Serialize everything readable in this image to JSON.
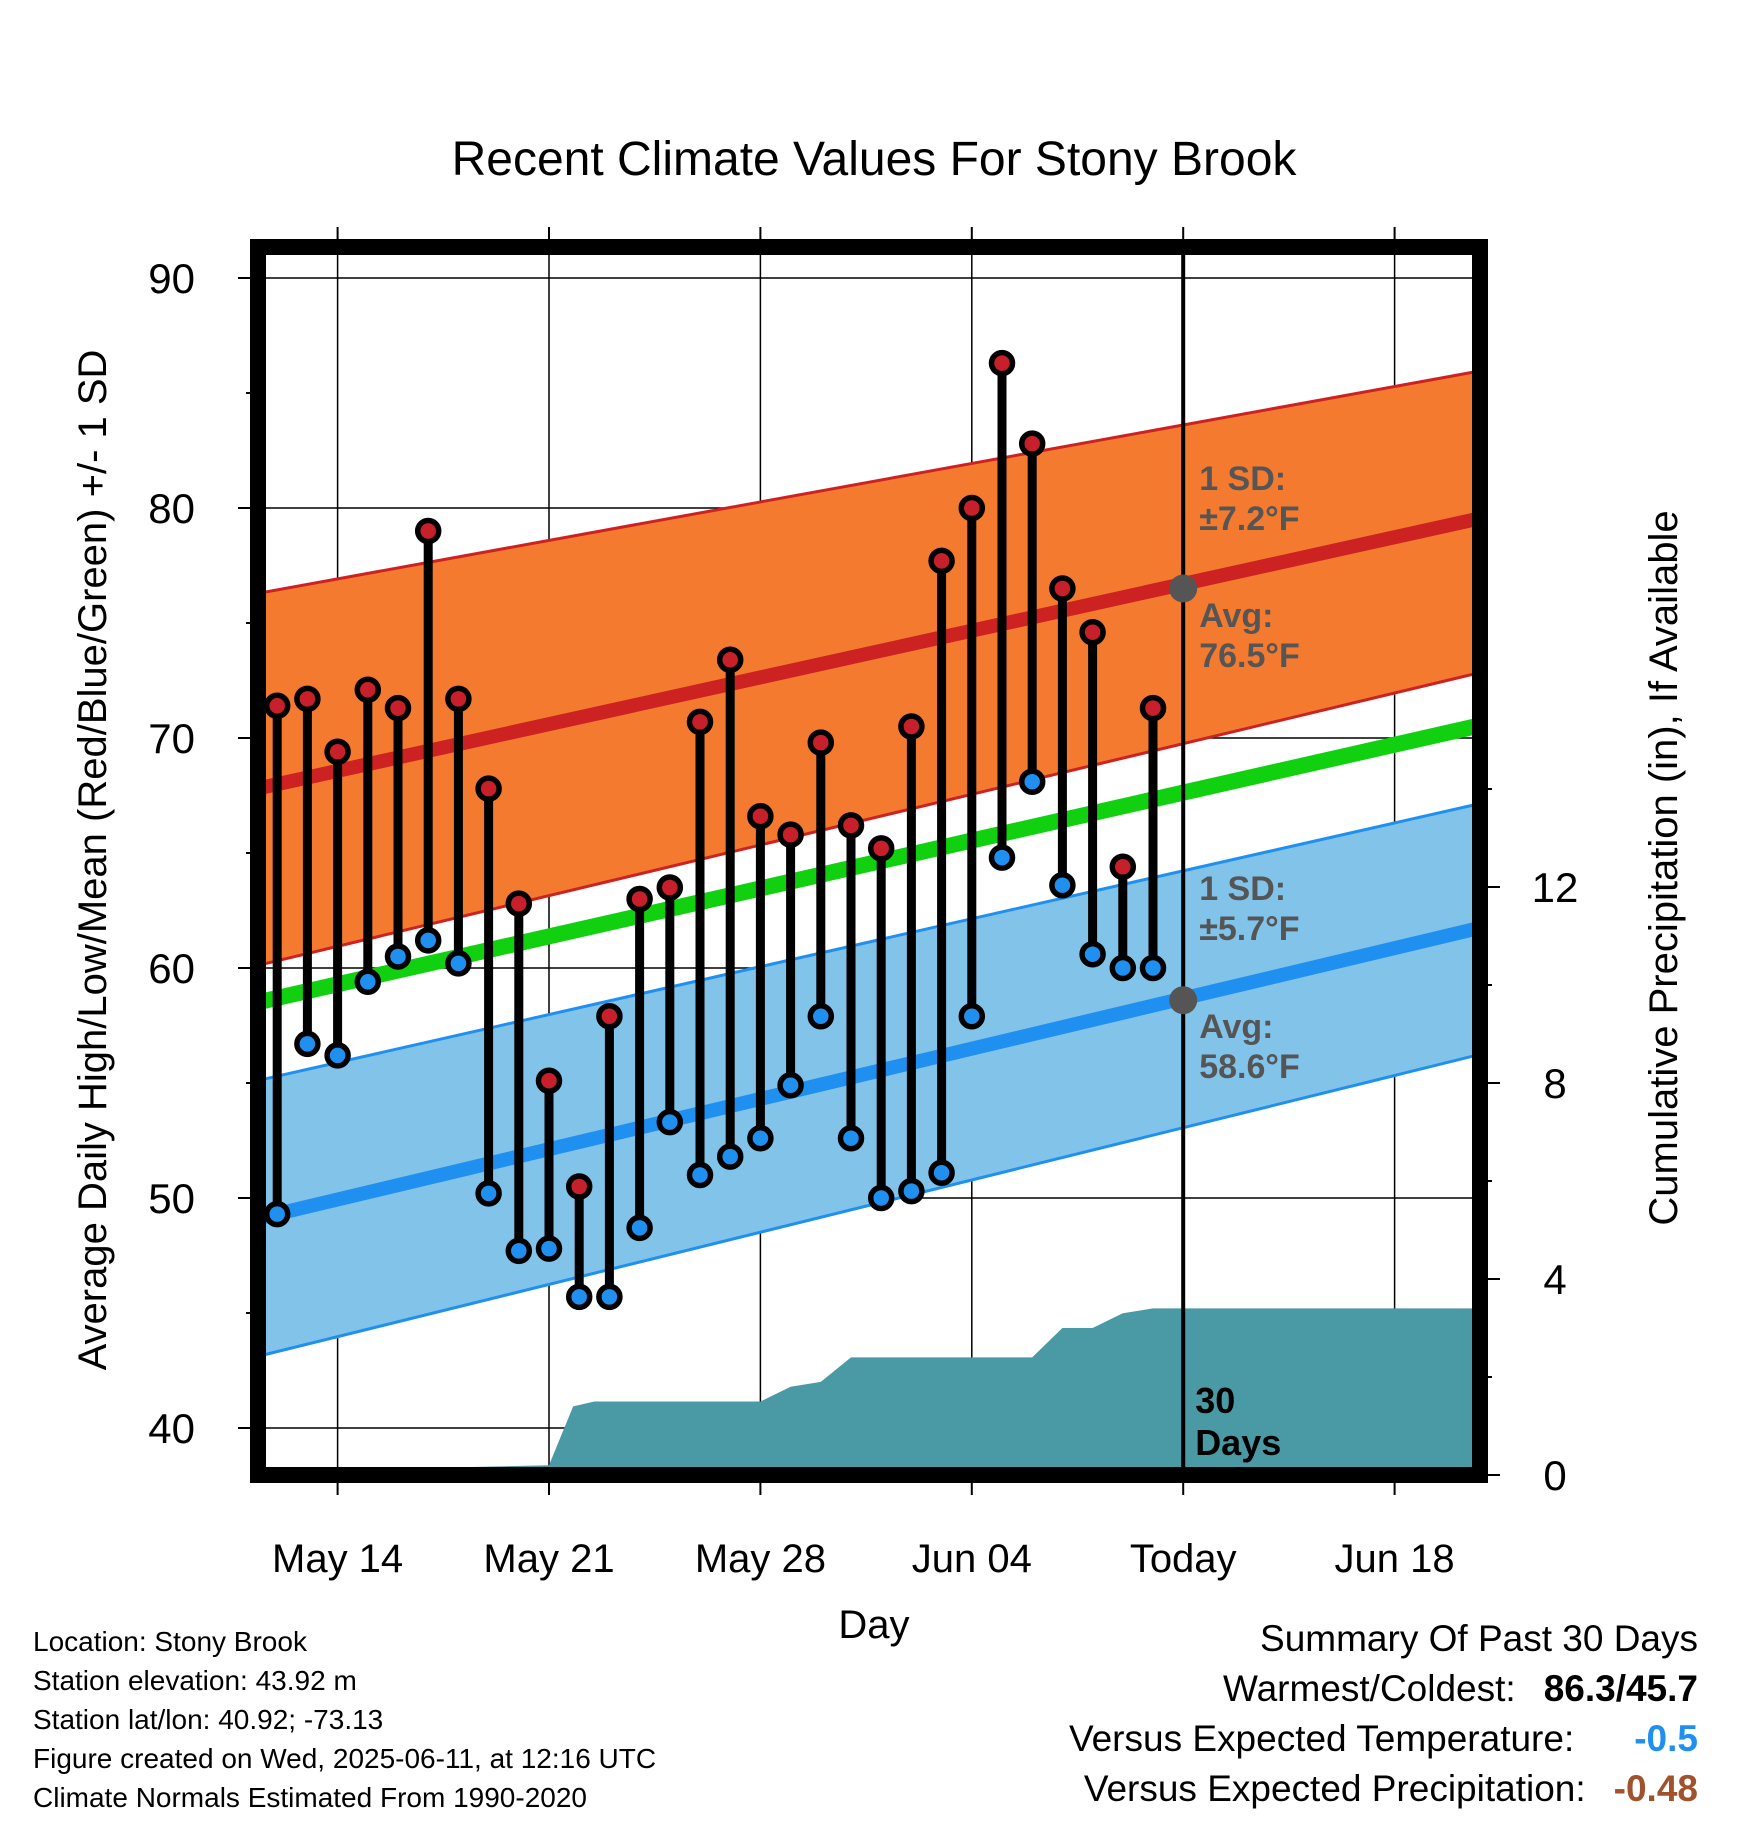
{
  "chart_data": {
    "type": "line",
    "title": "Recent Climate Values For Stony Brook",
    "xlabel": "Day",
    "ylabel": "Average Daily High/Low/Mean (Red/Blue/Green) +/- 1 SD",
    "y2label": "Cumulative Precipitation (in), If Available",
    "x_tick_labels": [
      "May 14",
      "May 21",
      "May 28",
      "Jun 04",
      "Today",
      "Jun 18"
    ],
    "x_tick_days": [
      3,
      10,
      17,
      24,
      31,
      38
    ],
    "xlim_days": [
      0,
      41
    ],
    "ylim": [
      38,
      91
    ],
    "y_ticks": [
      40,
      50,
      60,
      70,
      80,
      90
    ],
    "y2lim": [
      0,
      16.6
    ],
    "y2_ticks": [
      0,
      4,
      8,
      12
    ],
    "grid": true,
    "days": [
      1,
      2,
      3,
      4,
      5,
      6,
      7,
      8,
      9,
      10,
      11,
      12,
      13,
      14,
      15,
      16,
      17,
      18,
      19,
      20,
      21,
      22,
      23,
      24,
      25,
      26,
      27,
      28,
      29,
      30
    ],
    "series": [
      {
        "name": "High",
        "color": "#c8202a",
        "values": [
          71.4,
          71.7,
          69.4,
          72.1,
          71.3,
          79.0,
          71.7,
          67.8,
          62.8,
          55.1,
          50.5,
          57.9,
          63.0,
          63.5,
          70.7,
          73.4,
          66.6,
          65.8,
          69.8,
          66.2,
          65.2,
          70.5,
          77.7,
          80.0,
          86.3,
          82.8,
          76.5,
          74.6,
          64.4,
          71.3
        ]
      },
      {
        "name": "Low",
        "color": "#2090f0",
        "values": [
          49.3,
          56.7,
          56.2,
          59.4,
          60.5,
          61.2,
          60.2,
          50.2,
          47.7,
          47.8,
          45.7,
          45.7,
          48.7,
          53.3,
          51.0,
          51.8,
          52.6,
          54.9,
          57.9,
          52.6,
          50.0,
          50.3,
          51.1,
          57.9,
          64.8,
          68.1,
          63.6,
          60.6,
          60.0,
          60.0
        ]
      }
    ],
    "normals": {
      "high_mean": [
        67.7,
        79.6
      ],
      "high_upper": [
        76.2,
        86.0
      ],
      "high_lower": [
        60.0,
        72.9
      ],
      "low_mean": [
        49.0,
        61.8
      ],
      "low_upper": [
        55.0,
        67.2
      ],
      "low_lower": [
        43.0,
        56.3
      ],
      "mean": [
        58.4,
        70.6
      ]
    },
    "precip": {
      "days": [
        0,
        2.8,
        3,
        10,
        10.8,
        11.5,
        17,
        18,
        19,
        20,
        23,
        26,
        27,
        28,
        29,
        30,
        31,
        41
      ],
      "values": [
        0,
        0,
        0.1,
        0.2,
        1.4,
        1.5,
        1.5,
        1.8,
        1.9,
        2.4,
        2.4,
        2.4,
        3.0,
        3.0,
        3.3,
        3.4,
        3.4,
        3.4
      ]
    },
    "today_day": 31,
    "today_high_avg": 76.5,
    "today_low_avg": 58.6,
    "annotations": {
      "high_sd": "1 SD:",
      "high_sd_val": "±7.2°F",
      "high_avg": "Avg:",
      "high_avg_val": "76.5°F",
      "low_sd": "1 SD:",
      "low_sd_val": "±5.7°F",
      "low_avg": "Avg:",
      "low_avg_val": "58.6°F",
      "days_num": "30",
      "days_word": "Days"
    },
    "colors": {
      "high_band": "#f47a30",
      "high_line": "#cc2222",
      "low_band": "#82c3ea",
      "low_line": "#2090f0",
      "mean_line": "#10d010",
      "precip_fill": "#4a9aa5",
      "annotation": "#555555"
    }
  },
  "info": {
    "location": "Location: Stony Brook",
    "elevation": "Station elevation: 43.92 m",
    "latlon": "Station lat/lon: 40.92; -73.13",
    "created": "Figure created on Wed, 2025-06-11, at 12:16 UTC",
    "normals": "Climate Normals Estimated From 1990-2020"
  },
  "summary": {
    "title": "Summary Of Past 30 Days",
    "warmest_label": "Warmest/Coldest:",
    "warmest_value": "86.3/45.7",
    "temp_label": "Versus Expected Temperature:",
    "temp_value": "-0.5",
    "temp_color": "#2090f0",
    "precip_label": "Versus Expected Precipitation:",
    "precip_value": "-0.48",
    "precip_color": "#a0522d"
  }
}
